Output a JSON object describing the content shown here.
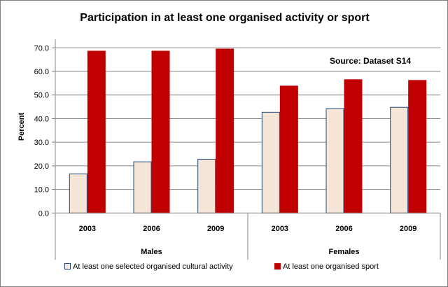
{
  "chart_data": {
    "type": "bar",
    "title": "Participation in at least one organised activity or sport",
    "ylabel": "Percent",
    "xlabel": "",
    "annotation": "Source: Dataset S14",
    "ylim": [
      0,
      70
    ],
    "yticks": [
      "0.0",
      "10.0",
      "20.0",
      "30.0",
      "40.0",
      "50.0",
      "60.0",
      "70.0"
    ],
    "grid": true,
    "legend_position": "bottom",
    "groups": [
      {
        "label": "Males",
        "categories": [
          "2003",
          "2006",
          "2009"
        ]
      },
      {
        "label": "Females",
        "categories": [
          "2003",
          "2006",
          "2009"
        ]
      }
    ],
    "categories": [
      "2003",
      "2006",
      "2009",
      "2003",
      "2006",
      "2009"
    ],
    "series": [
      {
        "name": "At least one selected organised cultural activity",
        "color": "#f5e6d7",
        "edge": "#1f497d",
        "values": [
          16.6,
          21.7,
          22.8,
          42.7,
          44.2,
          44.8
        ]
      },
      {
        "name": "At least one organised sport",
        "color": "#c00000",
        "edge": "#c00000",
        "values": [
          68.6,
          68.6,
          69.5,
          53.8,
          56.5,
          56.2
        ]
      }
    ]
  }
}
